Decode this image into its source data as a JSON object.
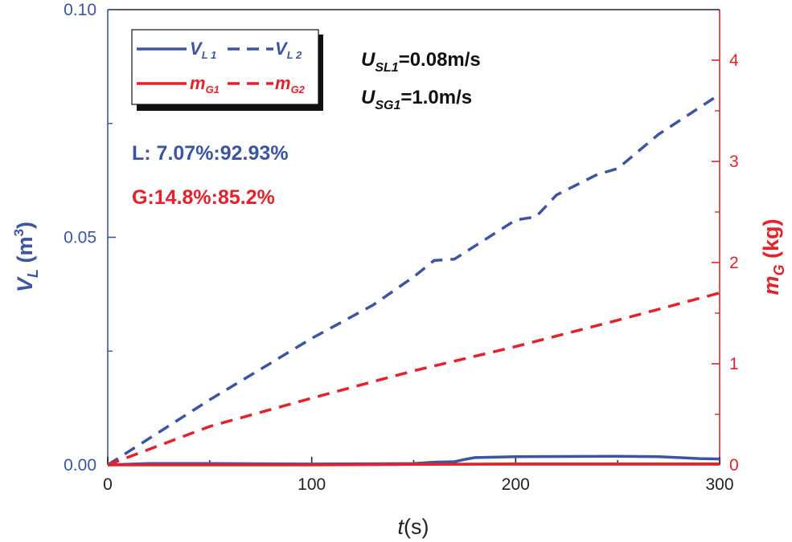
{
  "chart_data": {
    "type": "line",
    "xlabel": {
      "italic": "t",
      "rest": "(s)"
    },
    "ylabel_left": {
      "main": "V",
      "sub": "L",
      "rest": " (m",
      "sup": "3",
      "close": ")"
    },
    "ylabel_right": {
      "main": "m",
      "sub": "G",
      "rest": " (kg)"
    },
    "xlim": [
      0,
      300
    ],
    "ylim_left": [
      0,
      0.1
    ],
    "ylim_right": [
      0,
      4.5
    ],
    "x_ticks": [
      "0",
      "100",
      "200",
      "300"
    ],
    "left_ticks": [
      "0.00",
      "0.05",
      "0.10"
    ],
    "right_ticks": [
      "0",
      "1",
      "2",
      "3",
      "4"
    ],
    "colors": {
      "blue": "#3b55a6",
      "red": "#e8202a",
      "black": "#111111"
    },
    "series": [
      {
        "name": "V_L1",
        "label_main": "V",
        "label_sub": "L 1",
        "axis": "left",
        "style": "solid",
        "color": "#3b55a6",
        "x": [
          0,
          20,
          50,
          100,
          150,
          160,
          170,
          175,
          180,
          200,
          250,
          270,
          280,
          290,
          300
        ],
        "y": [
          0.0,
          0.0003,
          0.0003,
          0.0002,
          0.0003,
          0.0006,
          0.0007,
          0.0012,
          0.0016,
          0.0018,
          0.0019,
          0.0018,
          0.0016,
          0.0014,
          0.0013
        ]
      },
      {
        "name": "V_L2",
        "label_main": "V",
        "label_sub": "L 2",
        "axis": "left",
        "style": "dashed",
        "color": "#3b55a6",
        "x": [
          0,
          50,
          100,
          130,
          150,
          160,
          170,
          200,
          210,
          220,
          240,
          250,
          270,
          300
        ],
        "y": [
          0.0,
          0.0143,
          0.0278,
          0.0351,
          0.0413,
          0.0449,
          0.0452,
          0.0538,
          0.0545,
          0.0593,
          0.0638,
          0.0651,
          0.0726,
          0.0814
        ]
      },
      {
        "name": "m_G1",
        "label_main": "m",
        "label_sub": "G1",
        "axis": "right",
        "style": "solid",
        "color": "#e8202a",
        "x": [
          0,
          100,
          200,
          300
        ],
        "y": [
          0.0,
          0.0,
          0.01,
          0.01
        ]
      },
      {
        "name": "m_G2",
        "label_main": "m",
        "label_sub": "G2",
        "axis": "right",
        "style": "dashed",
        "color": "#e8202a",
        "x": [
          0,
          50,
          100,
          150,
          200,
          250,
          300
        ],
        "y": [
          0.0,
          0.38,
          0.66,
          0.93,
          1.17,
          1.43,
          1.7
        ]
      }
    ],
    "annotations": {
      "usl": {
        "main": "U",
        "sub": "SL1",
        "value": "=0.08m/s"
      },
      "usg": {
        "main": "U",
        "sub": "SG1",
        "value": "=1.0m/s"
      },
      "liquid_split": "L: 7.07%:92.93%",
      "gas_split": "G:14.8%:85.2%"
    }
  }
}
